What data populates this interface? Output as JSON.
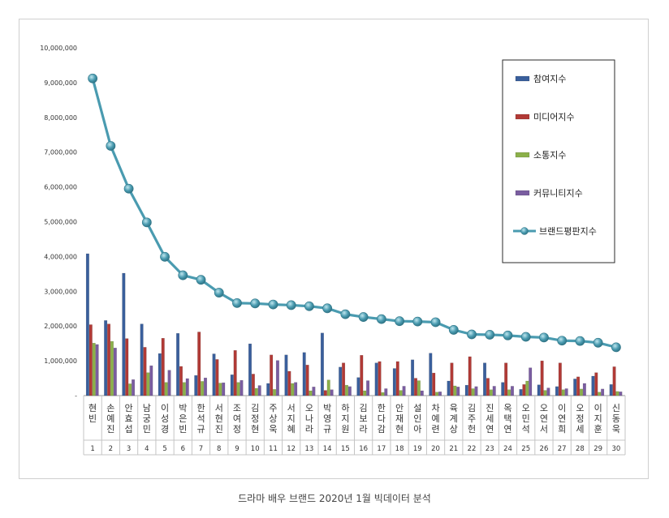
{
  "caption": "드라마 배우 브랜드 2020년 1월 빅데이터 분석",
  "chart_data": {
    "type": "bar",
    "y_ticks": [
      "10,000,000",
      "9,000,000",
      "8,000,000",
      "7,000,000",
      "6,000,000",
      "5,000,000",
      "4,000,000",
      "3,000,000",
      "2,000,000",
      "1,000,000",
      "-"
    ],
    "ylim": [
      0,
      10000000
    ],
    "grid": false,
    "legend_position": "top-right",
    "categories": [
      "현빈",
      "손예진",
      "안효섭",
      "남궁민",
      "이성경",
      "박은빈",
      "한석규",
      "서현진",
      "조여정",
      "김정현",
      "주상욱",
      "서지혜",
      "오나라",
      "박영규",
      "하지원",
      "김보라",
      "한다감",
      "안재현",
      "설인아",
      "차예련",
      "육계상",
      "김주헌",
      "진세연",
      "옥택연",
      "오민석",
      "오연서",
      "이연희",
      "오정세",
      "이지훈",
      "신동욱"
    ],
    "ranks": [
      "1",
      "2",
      "3",
      "4",
      "5",
      "6",
      "7",
      "8",
      "9",
      "10",
      "11",
      "12",
      "13",
      "14",
      "15",
      "16",
      "17",
      "18",
      "19",
      "20",
      "21",
      "22",
      "23",
      "24",
      "25",
      "26",
      "27",
      "28",
      "29",
      "30"
    ],
    "series": [
      {
        "name": "참여지수",
        "kind": "bar",
        "color": "#3a5f9c",
        "values": [
          4080000,
          2160000,
          3520000,
          2060000,
          1210000,
          1790000,
          580000,
          1200000,
          600000,
          1490000,
          350000,
          1170000,
          1240000,
          1800000,
          820000,
          520000,
          940000,
          780000,
          1030000,
          1220000,
          420000,
          300000,
          940000,
          380000,
          180000,
          310000,
          260000,
          480000,
          560000,
          320000
        ]
      },
      {
        "name": "미디어지수",
        "kind": "bar",
        "color": "#b13a36",
        "values": [
          2040000,
          2060000,
          1640000,
          1390000,
          1650000,
          840000,
          1830000,
          1040000,
          1300000,
          620000,
          1170000,
          700000,
          880000,
          150000,
          940000,
          1160000,
          980000,
          980000,
          500000,
          650000,
          940000,
          1120000,
          500000,
          940000,
          320000,
          1000000,
          940000,
          540000,
          660000,
          830000
        ]
      },
      {
        "name": "소통지수",
        "kind": "bar",
        "color": "#8cb04a",
        "values": [
          1510000,
          1560000,
          340000,
          660000,
          380000,
          380000,
          410000,
          360000,
          380000,
          210000,
          180000,
          350000,
          140000,
          450000,
          300000,
          140000,
          90000,
          150000,
          430000,
          100000,
          280000,
          200000,
          170000,
          170000,
          420000,
          150000,
          170000,
          190000,
          100000,
          120000
        ]
      },
      {
        "name": "커뮤니티지수",
        "kind": "bar",
        "color": "#7a5da0",
        "values": [
          1470000,
          1370000,
          460000,
          860000,
          730000,
          490000,
          510000,
          370000,
          440000,
          290000,
          1010000,
          380000,
          250000,
          170000,
          260000,
          430000,
          200000,
          270000,
          140000,
          110000,
          250000,
          260000,
          270000,
          270000,
          800000,
          220000,
          200000,
          350000,
          190000,
          110000
        ]
      },
      {
        "name": "브랜드평판지수",
        "kind": "line",
        "color": "#4a9bb0",
        "values": [
          9120000,
          7180000,
          5950000,
          4980000,
          3990000,
          3460000,
          3330000,
          2960000,
          2660000,
          2650000,
          2620000,
          2600000,
          2570000,
          2510000,
          2340000,
          2260000,
          2200000,
          2140000,
          2130000,
          2110000,
          1890000,
          1760000,
          1750000,
          1730000,
          1690000,
          1670000,
          1580000,
          1570000,
          1520000,
          1390000
        ]
      }
    ]
  }
}
